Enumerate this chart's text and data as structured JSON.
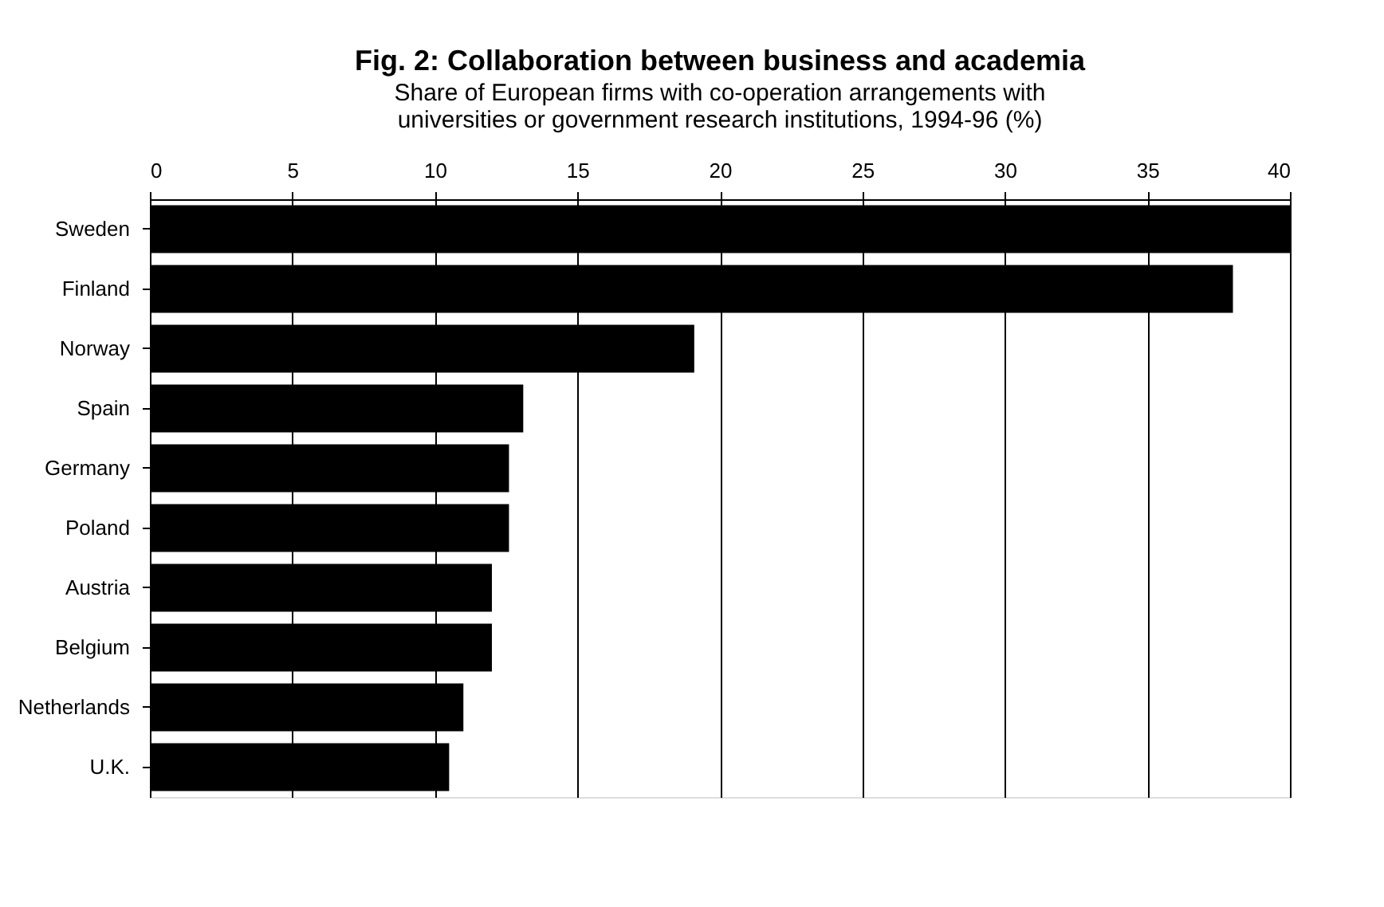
{
  "chart_data": {
    "type": "bar",
    "orientation": "horizontal",
    "title": "Fig. 2:  Collaboration between business and academia",
    "subtitle": "Share of European firms with co-operation arrangements with\nuniversities or government research institutions, 1994-96 (%)",
    "categories": [
      "Sweden",
      "Finland",
      "Norway",
      "Spain",
      "Germany",
      "Poland",
      "Austria",
      "Belgium",
      "Netherlands",
      "U.K."
    ],
    "values": [
      40.0,
      38.0,
      19.1,
      13.1,
      12.6,
      12.6,
      12.0,
      12.0,
      11.0,
      10.5
    ],
    "color": "#000000",
    "xlim": [
      0,
      40
    ],
    "xticks": [
      0,
      5,
      10,
      15,
      20,
      25,
      30,
      35,
      40
    ],
    "grid": "x"
  }
}
